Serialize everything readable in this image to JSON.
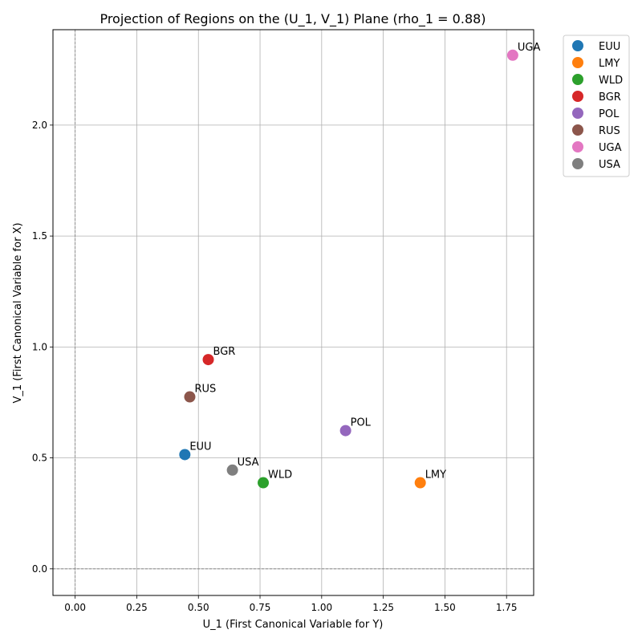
{
  "chart_data": {
    "type": "scatter",
    "title": "Projection of Regions on the (U_1, V_1) Plane (rho_1 = 0.88)",
    "xlabel": "U_1 (First Canonical Variable for Y)",
    "ylabel": "V_1 (First Canonical Variable for X)",
    "xlim": [
      -0.09,
      1.86
    ],
    "ylim": [
      -0.12,
      2.43
    ],
    "xticks": [
      0.0,
      0.25,
      0.5,
      0.75,
      1.0,
      1.25,
      1.5,
      1.75
    ],
    "xtick_labels": [
      "0.00",
      "0.25",
      "0.50",
      "0.75",
      "1.00",
      "1.25",
      "1.50",
      "1.75"
    ],
    "yticks": [
      0.0,
      0.5,
      1.0,
      1.5,
      2.0
    ],
    "ytick_labels": [
      "0.0",
      "0.5",
      "1.0",
      "1.5",
      "2.0"
    ],
    "grid": true,
    "zero_lines": true,
    "legend_position": "outside-top-right",
    "series": [
      {
        "name": "EUU",
        "color": "#1f77b4",
        "x": 0.445,
        "y": 0.515
      },
      {
        "name": "LMY",
        "color": "#ff7f0e",
        "x": 1.4,
        "y": 0.388
      },
      {
        "name": "WLD",
        "color": "#2ca02c",
        "x": 0.763,
        "y": 0.388
      },
      {
        "name": "BGR",
        "color": "#d62728",
        "x": 0.54,
        "y": 0.943
      },
      {
        "name": "POL",
        "color": "#9467bd",
        "x": 1.097,
        "y": 0.623
      },
      {
        "name": "RUS",
        "color": "#8c564b",
        "x": 0.465,
        "y": 0.775
      },
      {
        "name": "UGA",
        "color": "#e377c2",
        "x": 1.775,
        "y": 2.315
      },
      {
        "name": "USA",
        "color": "#7f7f7f",
        "x": 0.638,
        "y": 0.445
      }
    ]
  }
}
